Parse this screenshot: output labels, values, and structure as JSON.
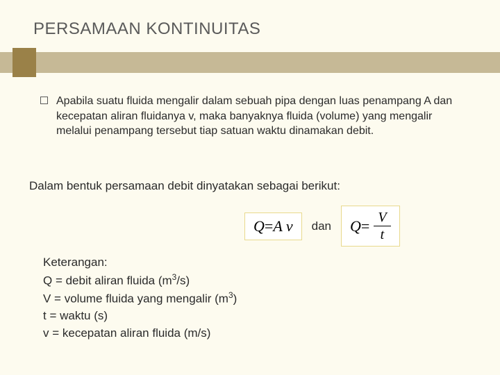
{
  "title": "PERSAMAAN KONTINUITAS",
  "bullet": "Apabila suatu fluida mengalir dalam sebuah pipa dengan luas penampang A dan kecepatan aliran fluidanya v, maka banyaknya fluida (volume) yang mengalir melalui penampang tersebut tiap satuan waktu dinamakan debit.",
  "statement": "Dalam bentuk persamaan debit dinyatakan sebagai berikut:",
  "eq1_lhs": "Q",
  "eq1_eq": " = ",
  "eq1_rhs": "A v",
  "conj": "dan",
  "eq2_lhs": "Q",
  "eq2_eq": " = ",
  "eq2_num": "V",
  "eq2_den": "t",
  "legend": {
    "header": "Keterangan:",
    "l1a": "Q = debit aliran fluida (m",
    "l1b": "/s)",
    "l2a": "V = volume fluida yang mengalir (m",
    "l2b": ")",
    "l3": " t = waktu (s)",
    "l4": "v = kecepatan aliran fluida (m/s)"
  },
  "colors": {
    "background": "#fdfbef",
    "bar": "#c6b996",
    "tab": "#9a8148",
    "title_text": "#5a5a5a",
    "body_text": "#2a2a2a",
    "eq_border": "#e8d98c"
  }
}
